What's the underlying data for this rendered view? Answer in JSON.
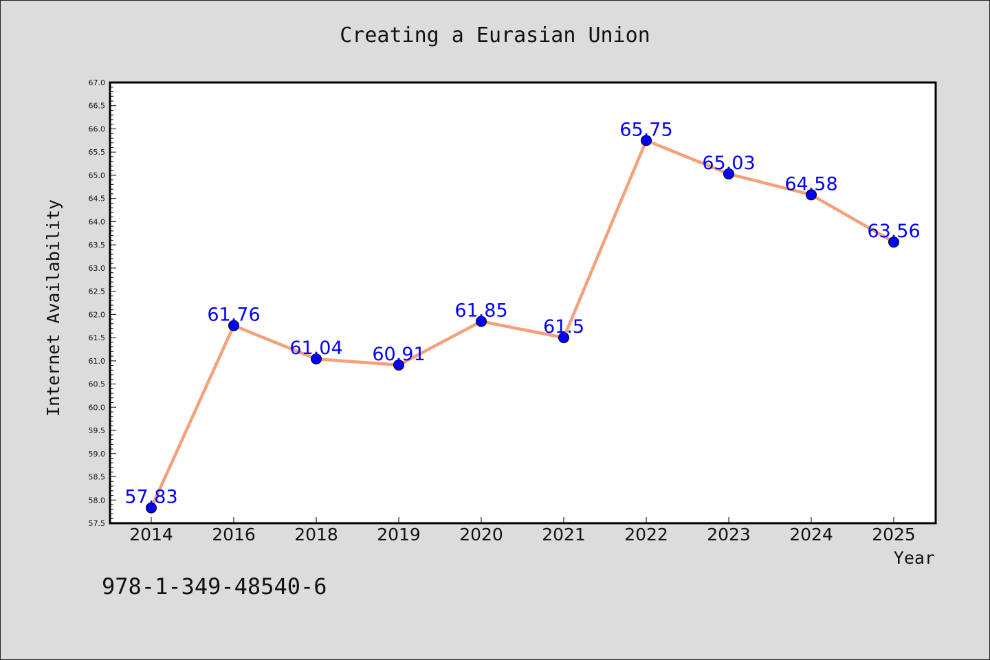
{
  "page": {
    "title": "Creating a Eurasian Union",
    "footer_code": "978-1-349-48540-6"
  },
  "chart_data": {
    "type": "line",
    "title": "Creating a Eurasian Union",
    "xlabel": "Year",
    "ylabel": "Internet Availability",
    "categories": [
      "2014",
      "2016",
      "2018",
      "2019",
      "2020",
      "2021",
      "2022",
      "2023",
      "2024",
      "2025"
    ],
    "series": [
      {
        "values": [
          57.83,
          61.76,
          61.04,
          60.91,
          61.85,
          61.5,
          65.75,
          65.03,
          64.58,
          63.56
        ],
        "line_color": "#f4a07a",
        "marker_color": "#0000ff"
      }
    ],
    "data_labels": [
      "57.83",
      "61.76",
      "61.04",
      "60.91",
      "61.85",
      "61.5",
      "65.75",
      "65.03",
      "64.58",
      "63.56"
    ],
    "ylim": [
      57.5,
      67.0
    ],
    "yticks": [
      "57.5",
      "58.0",
      "58.5",
      "59.0",
      "59.5",
      "60.0",
      "60.5",
      "61.0",
      "61.5",
      "62.0",
      "62.5",
      "63.0",
      "63.5",
      "64.0",
      "64.5",
      "65.0",
      "65.5",
      "66.0",
      "66.5",
      "67.0"
    ],
    "grid": false,
    "legend": "none"
  }
}
